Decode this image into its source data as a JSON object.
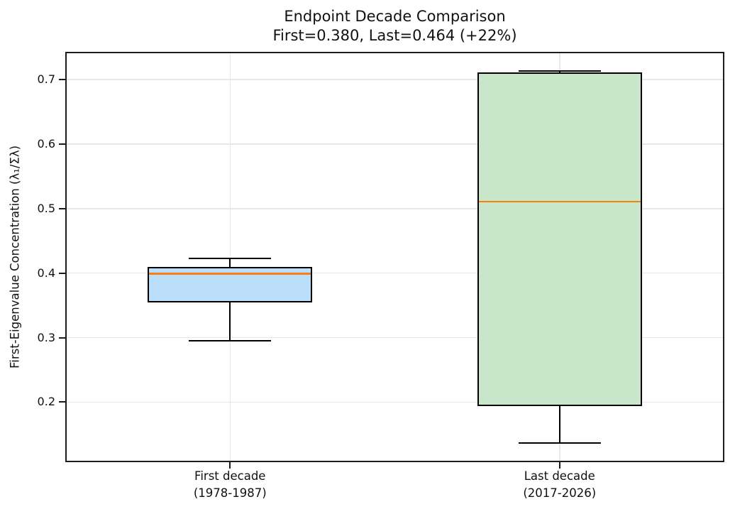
{
  "figure": {
    "title_line1": "Endpoint Decade Comparison",
    "title_line2": "First=0.380, Last=0.464 (+22%)"
  },
  "chart_data": {
    "type": "box",
    "title": "Endpoint Decade Comparison",
    "subtitle": "First=0.380, Last=0.464 (+22%)",
    "xlabel": "",
    "ylabel": "First-Eigenvalue Concentration (λ₁/Σλ)",
    "categories": [
      [
        "First decade",
        "(1978-1987)"
      ],
      [
        "Last decade",
        "(2017-2026)"
      ]
    ],
    "series": [
      {
        "name": "First decade (1978-1987)",
        "whislo": 0.295,
        "q1": 0.355,
        "med": 0.399,
        "q3": 0.41,
        "whishi": 0.423,
        "mean": 0.38,
        "fill_color": "#bbdefb"
      },
      {
        "name": "Last decade (2017-2026)",
        "whislo": 0.137,
        "q1": 0.194,
        "med": 0.511,
        "q3": 0.711,
        "whishi": 0.713,
        "mean": 0.464,
        "fill_color": "#c8e6c9"
      }
    ],
    "yticks": [
      0.2,
      0.3,
      0.4,
      0.5,
      0.6,
      0.7
    ],
    "ytick_format_decimals": 1,
    "ylim": [
      0.107,
      0.743
    ],
    "grid": true,
    "legend": false,
    "box_width_fraction_of_slot": 0.5,
    "cap_width_fraction_of_box": 0.5,
    "colors": {
      "median": "#f97e12",
      "box_edge": "#000000",
      "whisker": "#000000",
      "grid": "#e7e7e7",
      "spine": "#1c1c1c",
      "background": "#ffffff",
      "text": "#111111"
    }
  }
}
